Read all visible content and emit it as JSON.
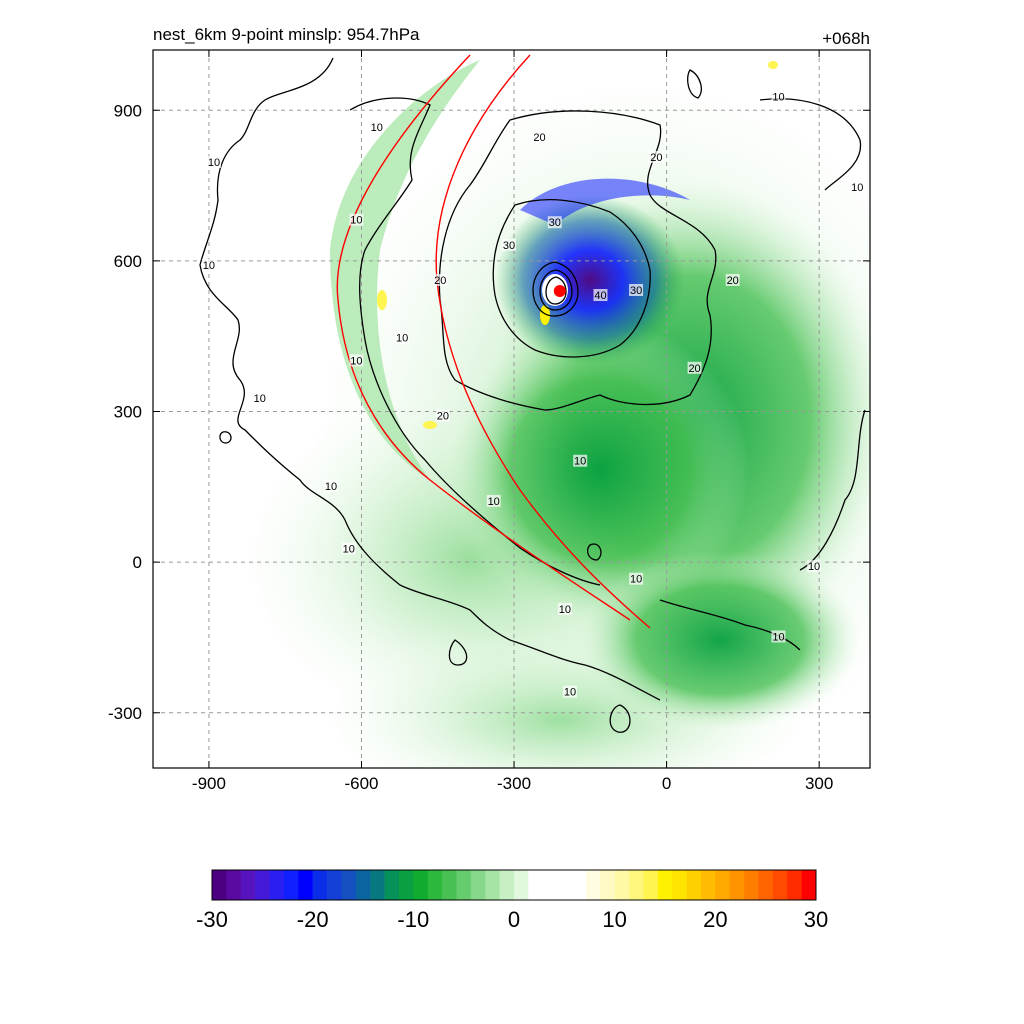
{
  "title": {
    "left": "nest_6km  9-point minslp: 954.7hPa",
    "right": "+068h"
  },
  "chart_data": {
    "type": "heatmap",
    "title": "nest_6km  9-point minslp: 954.7hPa",
    "forecast_hour_label": "+068h",
    "xlim": [
      -1010,
      400
    ],
    "ylim": [
      -410,
      1020
    ],
    "x_ticks": [
      -900,
      -600,
      -300,
      0,
      300
    ],
    "y_ticks": [
      -300,
      0,
      300,
      600,
      900
    ],
    "x_tick_labels": [
      "-900",
      "-600",
      "-300",
      "0",
      "300"
    ],
    "y_tick_labels": [
      "-300",
      "0",
      "300",
      "600",
      "900"
    ],
    "grid": true,
    "storm_center": {
      "x": -210,
      "y": 540,
      "marker_color": "#ff0000"
    },
    "contour_labels": [
      {
        "text": "10",
        "x": -570,
        "y": 865
      },
      {
        "text": "10",
        "x": -890,
        "y": 795
      },
      {
        "text": "10",
        "x": -610,
        "y": 680
      },
      {
        "text": "10",
        "x": -900,
        "y": 590
      },
      {
        "text": "10",
        "x": -520,
        "y": 445
      },
      {
        "text": "10",
        "x": -610,
        "y": 400
      },
      {
        "text": "10",
        "x": -800,
        "y": 325
      },
      {
        "text": "10",
        "x": -660,
        "y": 150
      },
      {
        "text": "10",
        "x": -625,
        "y": 25
      },
      {
        "text": "10",
        "x": -340,
        "y": 120
      },
      {
        "text": "10",
        "x": -170,
        "y": 200
      },
      {
        "text": "10",
        "x": -60,
        "y": -35
      },
      {
        "text": "10",
        "x": -200,
        "y": -95
      },
      {
        "text": "10",
        "x": -190,
        "y": -260
      },
      {
        "text": "10",
        "x": 220,
        "y": 925
      },
      {
        "text": "10",
        "x": 375,
        "y": 745
      },
      {
        "text": "10",
        "x": 290,
        "y": -10
      },
      {
        "text": "10",
        "x": 220,
        "y": -150
      },
      {
        "text": "20",
        "x": -250,
        "y": 845
      },
      {
        "text": "20",
        "x": -20,
        "y": 805
      },
      {
        "text": "20",
        "x": -445,
        "y": 560
      },
      {
        "text": "20",
        "x": -440,
        "y": 290
      },
      {
        "text": "20",
        "x": 130,
        "y": 560
      },
      {
        "text": "20",
        "x": 55,
        "y": 385
      },
      {
        "text": "30",
        "x": -310,
        "y": 630
      },
      {
        "text": "30",
        "x": -220,
        "y": 675
      },
      {
        "text": "30",
        "x": -60,
        "y": 540
      },
      {
        "text": "40",
        "x": -130,
        "y": 530
      }
    ],
    "colorbar": {
      "min": -30,
      "max": 30,
      "ticks": [
        -30,
        -20,
        -10,
        0,
        10,
        20,
        30
      ],
      "tick_labels": [
        "-30",
        "-20",
        "-10",
        "0",
        "10",
        "20",
        "30"
      ],
      "colors": [
        "#4b0082",
        "#5a0aa0",
        "#5714be",
        "#4419d8",
        "#2a1ff0",
        "#1020ff",
        "#0000ff",
        "#0a2de8",
        "#1540d8",
        "#1450c0",
        "#0a64a0",
        "#087880",
        "#06905a",
        "#08a040",
        "#10ac30",
        "#2cb83a",
        "#48c054",
        "#66cc6e",
        "#86d88a",
        "#a6e4a6",
        "#c6efc4",
        "#e2f8de",
        "#ffffff",
        "#ffffff",
        "#ffffff",
        "#ffffff",
        "#fffce2",
        "#fffac4",
        "#fff8a6",
        "#fff67e",
        "#fff450",
        "#fff200",
        "#ffe400",
        "#ffd000",
        "#ffbc00",
        "#ffa800",
        "#ff9400",
        "#ff7e00",
        "#ff6400",
        "#ff4a00",
        "#ff2c00",
        "#ff0000"
      ]
    }
  },
  "colors": {
    "axes": "#000000",
    "grid": "#999999",
    "contour": "#000000",
    "track": "#ff0000"
  }
}
